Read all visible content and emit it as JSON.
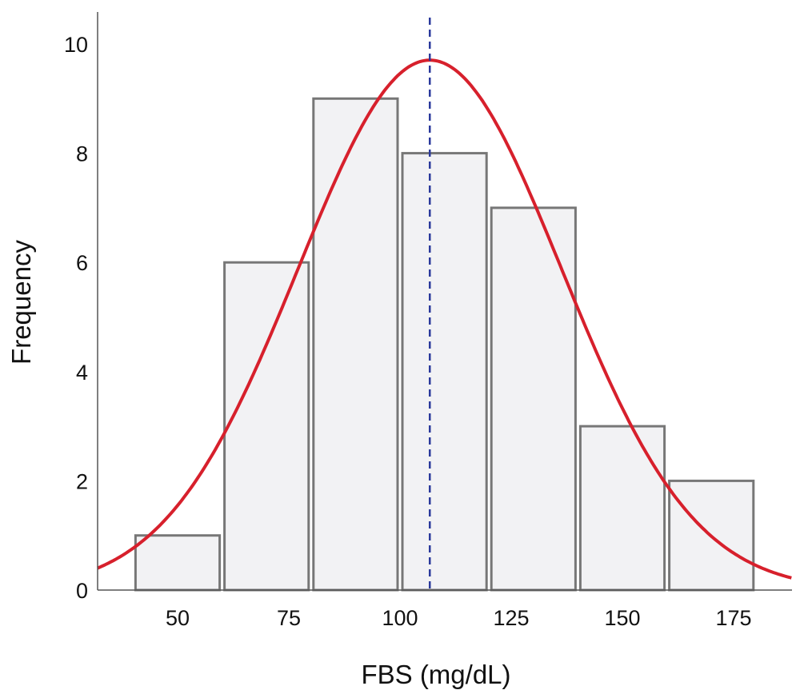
{
  "chart_data": {
    "type": "bar",
    "title": "",
    "xlabel": "FBS (mg/dL)",
    "ylabel": "Frequency",
    "bins": [
      {
        "from": 40,
        "to": 60,
        "count": 1
      },
      {
        "from": 60,
        "to": 80,
        "count": 6
      },
      {
        "from": 80,
        "to": 100,
        "count": 9
      },
      {
        "from": 100,
        "to": 120,
        "count": 8
      },
      {
        "from": 120,
        "to": 140,
        "count": 7
      },
      {
        "from": 140,
        "to": 160,
        "count": 3
      },
      {
        "from": 160,
        "to": 180,
        "count": 2
      }
    ],
    "xticks": [
      50,
      75,
      100,
      125,
      150,
      175
    ],
    "yticks": [
      0,
      2,
      4,
      6,
      8,
      10
    ],
    "xlim": [
      32,
      188
    ],
    "ylim": [
      0,
      10.6
    ],
    "mean_line": 106.7,
    "normal_curve": {
      "mean": 106.7,
      "sd": 29.6,
      "n": 36,
      "bin_width": 20
    },
    "grid": false,
    "colors": {
      "bar_fill": "#f2f2f4",
      "bar_stroke": "#777777",
      "curve": "#d7202c",
      "mean_line": "#2b3a9c",
      "axis": "#555555"
    }
  }
}
